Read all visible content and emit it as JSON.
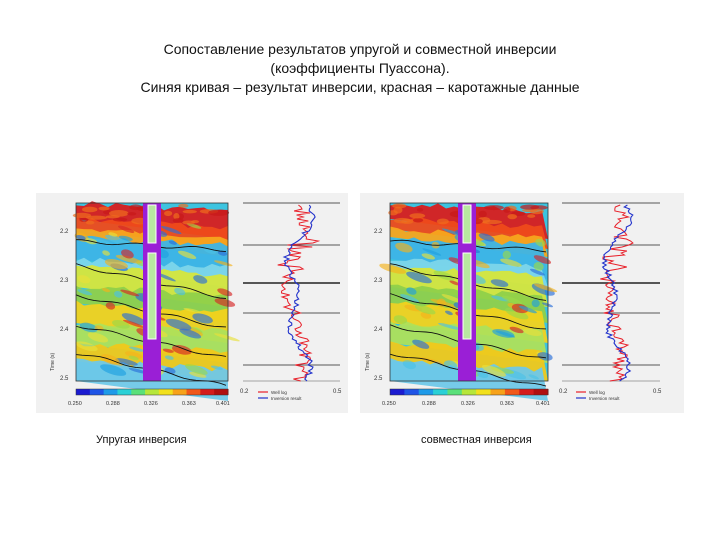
{
  "title": {
    "line1": "Сопоставление результатов упругой и совместной инверсии",
    "line2": "(коэффициенты Пуассона).",
    "line3": "Синяя кривая – результат инверсии, красная – каротажные данные"
  },
  "panels": [
    {
      "caption": "Упругая инверсия",
      "time_ticks": [
        "2.2",
        "2.3",
        "2.4",
        "2.5"
      ],
      "time_axis_label": "Time (s)",
      "colorbar_ticks": [
        "0.250",
        "0.288",
        "0.326",
        "0.363",
        "0.401"
      ],
      "log_axis_ticks": [
        "0.2",
        "0.5"
      ],
      "legend": [
        "Well log",
        "Inversion result"
      ]
    },
    {
      "caption": "совместная инверсия",
      "time_ticks": [
        "2.2",
        "2.3",
        "2.4",
        "2.5"
      ],
      "time_axis_label": "Time (s)",
      "colorbar_ticks": [
        "0.250",
        "0.288",
        "0.326",
        "0.363",
        "0.401"
      ],
      "log_axis_ticks": [
        "0.2",
        "0.5"
      ],
      "legend": [
        "Well log",
        "Inversion result"
      ]
    }
  ],
  "colors": {
    "well_log": "#e8202a",
    "inversion": "#2233cc",
    "well_column": "#9a1fd6"
  }
}
